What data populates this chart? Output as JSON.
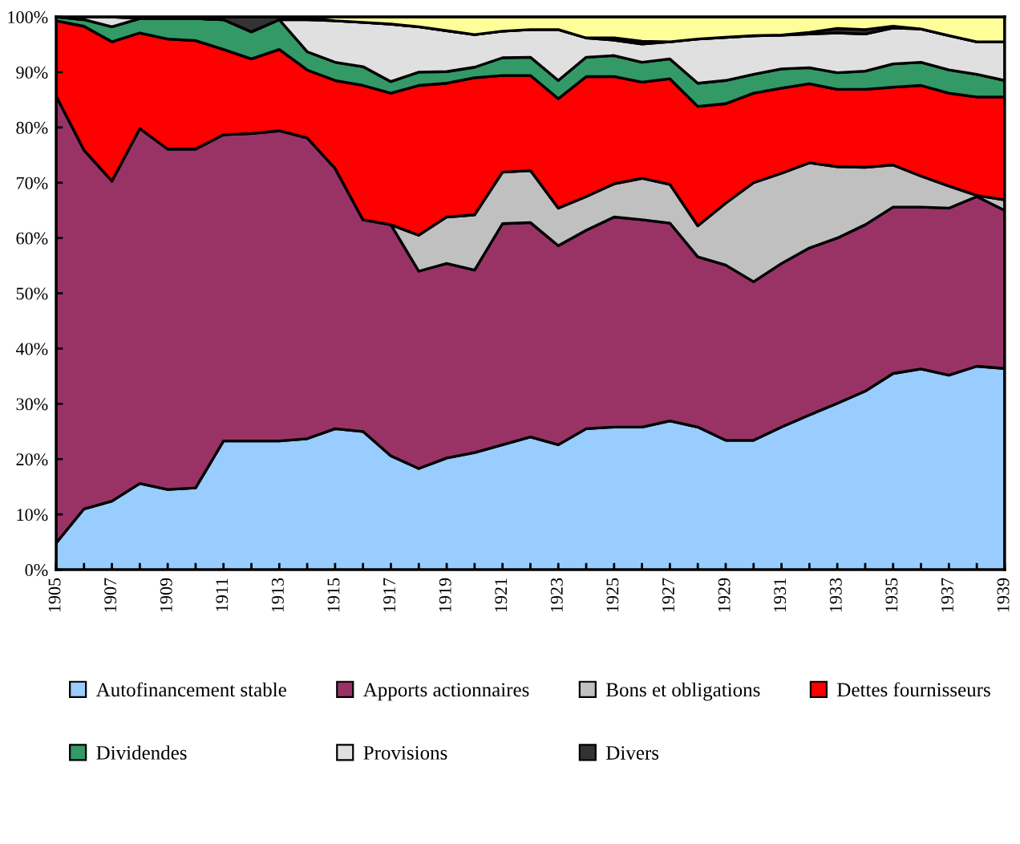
{
  "chart_data": {
    "type": "area",
    "stacked": true,
    "x": [
      1905,
      1906,
      1907,
      1908,
      1909,
      1910,
      1911,
      1912,
      1913,
      1914,
      1915,
      1916,
      1917,
      1918,
      1919,
      1920,
      1921,
      1922,
      1923,
      1924,
      1925,
      1926,
      1927,
      1928,
      1929,
      1930,
      1931,
      1932,
      1933,
      1934,
      1935,
      1936,
      1937,
      1938,
      1939
    ],
    "series": [
      {
        "name": "Autofinancement stable",
        "color": "#99ccff",
        "values": [
          4.8,
          11.0,
          12.4,
          15.6,
          14.5,
          14.8,
          23.3,
          23.3,
          23.3,
          23.7,
          25.5,
          25.0,
          20.6,
          18.3,
          20.2,
          21.2,
          22.6,
          24.0,
          22.6,
          25.5,
          25.8,
          25.8,
          26.9,
          25.8,
          23.4,
          23.4,
          25.8,
          28.0,
          30.1,
          32.3,
          35.5,
          36.3,
          35.2,
          36.8,
          36.4
        ]
      },
      {
        "name": "Apports actionnaires",
        "color": "#993366",
        "values": [
          80.9,
          64.9,
          57.9,
          64.2,
          61.6,
          61.3,
          55.4,
          55.6,
          56.1,
          54.4,
          47.1,
          38.3,
          41.8,
          35.7,
          35.2,
          33.0,
          40.0,
          38.8,
          36.0,
          35.9,
          38.0,
          37.5,
          35.8,
          30.8,
          31.7,
          28.7,
          29.6,
          30.2,
          29.9,
          30.1,
          30.1,
          29.3,
          30.2,
          30.7,
          28.6
        ]
      },
      {
        "name": "Bons et obligations",
        "color": "#c0c0c0",
        "values": [
          0,
          0,
          0,
          0,
          0,
          0,
          0,
          0,
          0,
          0,
          0,
          0,
          0,
          6.5,
          8.4,
          10.0,
          9.3,
          9.4,
          6.8,
          6.1,
          6.0,
          7.5,
          7.0,
          5.6,
          11.2,
          17.9,
          16.3,
          15.4,
          12.9,
          10.4,
          7.6,
          5.6,
          4.0,
          0.2,
          1.9
        ]
      },
      {
        "name": "Dettes fournisseurs",
        "color": "#ff0000",
        "values": [
          13.6,
          22.4,
          25.2,
          17.3,
          19.9,
          19.6,
          15.4,
          13.5,
          14.7,
          12.3,
          15.9,
          24.3,
          23.8,
          27.1,
          24.2,
          24.8,
          17.5,
          17.2,
          19.8,
          21.7,
          19.4,
          17.4,
          19.1,
          21.6,
          18.0,
          16.2,
          15.4,
          14.3,
          14.0,
          14.1,
          14.1,
          16.4,
          16.8,
          17.8,
          18.6
        ]
      },
      {
        "name": "Dividendes",
        "color": "#339966",
        "values": [
          0.7,
          1.2,
          2.7,
          2.6,
          3.7,
          4.0,
          5.4,
          4.9,
          5.4,
          3.3,
          3.3,
          3.4,
          2.1,
          2.4,
          2.1,
          1.9,
          3.2,
          3.3,
          3.3,
          3.5,
          3.8,
          3.6,
          3.6,
          4.2,
          4.2,
          3.4,
          3.5,
          2.9,
          3.0,
          3.3,
          4.2,
          4.2,
          4.2,
          4.1,
          3.0
        ]
      },
      {
        "name": "Provisions",
        "color": "#e0e0e0",
        "values": [
          0,
          0.5,
          1.8,
          0,
          0,
          0,
          0,
          0,
          0,
          5.8,
          7.5,
          8.0,
          10.4,
          8.2,
          7.4,
          5.9,
          4.8,
          5.0,
          9.2,
          3.5,
          2.8,
          3.3,
          3.1,
          8.0,
          7.8,
          7.0,
          6.1,
          6.1,
          7.2,
          6.7,
          6.5,
          6.0,
          6.2,
          5.9,
          7.0
        ]
      },
      {
        "name": "Divers",
        "color": "#333333",
        "values": [
          0,
          0,
          0,
          0.3,
          0.3,
          0.3,
          0.5,
          2.7,
          0.5,
          0.3,
          0,
          0,
          0,
          0,
          0,
          0,
          0,
          0,
          0,
          0,
          0.4,
          0.5,
          0,
          0,
          0,
          0,
          0,
          0.3,
          0.8,
          0.8,
          0.3,
          0,
          0,
          0,
          0
        ]
      },
      {
        "color": "#ffff99",
        "values": [
          0,
          0,
          0,
          0,
          0,
          0,
          0,
          0,
          0,
          0.2,
          0.7,
          1.0,
          1.3,
          1.8,
          2.5,
          3.2,
          2.6,
          2.3,
          2.3,
          3.8,
          3.8,
          4.4,
          4.5,
          4.0,
          3.7,
          3.4,
          3.3,
          2.8,
          2.1,
          2.3,
          1.7,
          2.2,
          3.4,
          4.5,
          4.5
        ]
      }
    ],
    "xlim": [
      1905,
      1939
    ],
    "xticks": [
      {
        "value": 1905,
        "label": "1905"
      },
      {
        "value": 1906,
        "label": null
      },
      {
        "value": 1907,
        "label": "1907"
      },
      {
        "value": 1908,
        "label": null
      },
      {
        "value": 1909,
        "label": "1909"
      },
      {
        "value": 1910,
        "label": null
      },
      {
        "value": 1911,
        "label": "1911"
      },
      {
        "value": 1912,
        "label": null
      },
      {
        "value": 1913,
        "label": "1913"
      },
      {
        "value": 1914,
        "label": null
      },
      {
        "value": 1915,
        "label": "1915"
      },
      {
        "value": 1916,
        "label": null
      },
      {
        "value": 1917,
        "label": "1917"
      },
      {
        "value": 1918,
        "label": null
      },
      {
        "value": 1919,
        "label": "1919"
      },
      {
        "value": 1920,
        "label": null
      },
      {
        "value": 1921,
        "label": "1921"
      },
      {
        "value": 1922,
        "label": null
      },
      {
        "value": 1923,
        "label": "1923"
      },
      {
        "value": 1924,
        "label": null
      },
      {
        "value": 1925,
        "label": "1925"
      },
      {
        "value": 1926,
        "label": null
      },
      {
        "value": 1927,
        "label": "1927"
      },
      {
        "value": 1928,
        "label": null
      },
      {
        "value": 1929,
        "label": "1929"
      },
      {
        "value": 1930,
        "label": null
      },
      {
        "value": 1931,
        "label": "1931"
      },
      {
        "value": 1932,
        "label": null
      },
      {
        "value": 1933,
        "label": "1933"
      },
      {
        "value": 1934,
        "label": null
      },
      {
        "value": 1935,
        "label": "1935"
      },
      {
        "value": 1936,
        "label": null
      },
      {
        "value": 1937,
        "label": "1937"
      },
      {
        "value": 1938,
        "label": null
      },
      {
        "value": 1939,
        "label": "1939"
      }
    ],
    "ylim": [
      0,
      100
    ],
    "yticks": [
      {
        "value": 0,
        "label": "0%"
      },
      {
        "value": 10,
        "label": "10%"
      },
      {
        "value": 20,
        "label": "20%"
      },
      {
        "value": 30,
        "label": "30%"
      },
      {
        "value": 40,
        "label": "40%"
      },
      {
        "value": 50,
        "label": "50%"
      },
      {
        "value": 60,
        "label": "60%"
      },
      {
        "value": 70,
        "label": "70%"
      },
      {
        "value": 80,
        "label": "80%"
      },
      {
        "value": 90,
        "label": "90%"
      },
      {
        "value": 100,
        "label": "100%"
      }
    ],
    "grid": false,
    "legend": "bottom"
  }
}
